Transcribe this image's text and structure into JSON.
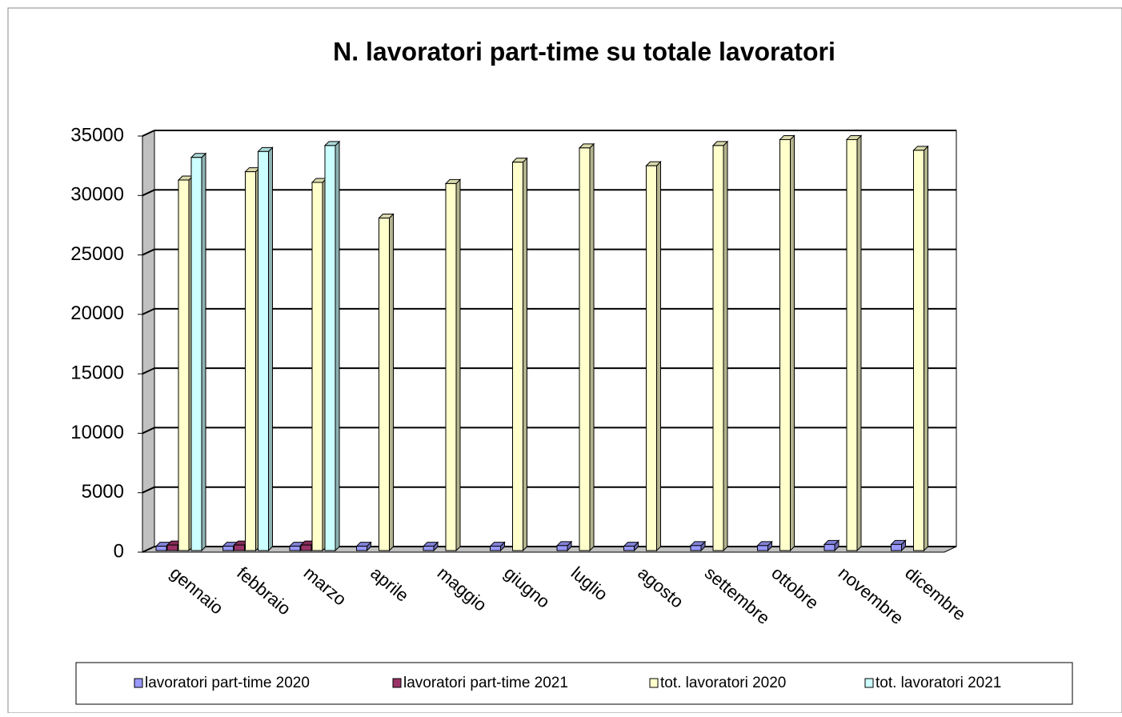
{
  "chart_data": {
    "type": "bar3d",
    "title": "N. lavoratori part-time su totale lavoratori",
    "categories": [
      "gennaio",
      "febbraio",
      "marzo",
      "aprile",
      "maggio",
      "giugno",
      "luglio",
      "agosto",
      "settembre",
      "ottobre",
      "novembre",
      "dicembre"
    ],
    "series": [
      {
        "name": "lavoratori part-time 2020",
        "color": "#9999ff",
        "values": [
          500,
          500,
          500,
          500,
          500,
          500,
          550,
          500,
          550,
          550,
          650,
          650
        ]
      },
      {
        "name": "lavoratori part-time 2021",
        "color": "#993366",
        "values": [
          600,
          600,
          600,
          null,
          null,
          null,
          null,
          null,
          null,
          null,
          null,
          null
        ]
      },
      {
        "name": "tot. lavoratori 2020",
        "color": "#ffffcc",
        "values": [
          31300,
          32000,
          31100,
          28100,
          31000,
          32800,
          34000,
          32500,
          34200,
          34700,
          34700,
          33800
        ]
      },
      {
        "name": "tot. lavoratori 2021",
        "color": "#ccffff",
        "values": [
          33200,
          33700,
          34200,
          null,
          null,
          null,
          null,
          null,
          null,
          null,
          null,
          null
        ]
      }
    ],
    "ylim": [
      0,
      35000
    ],
    "yticks": [
      0,
      5000,
      10000,
      15000,
      20000,
      25000,
      30000,
      35000
    ],
    "grid": true
  }
}
